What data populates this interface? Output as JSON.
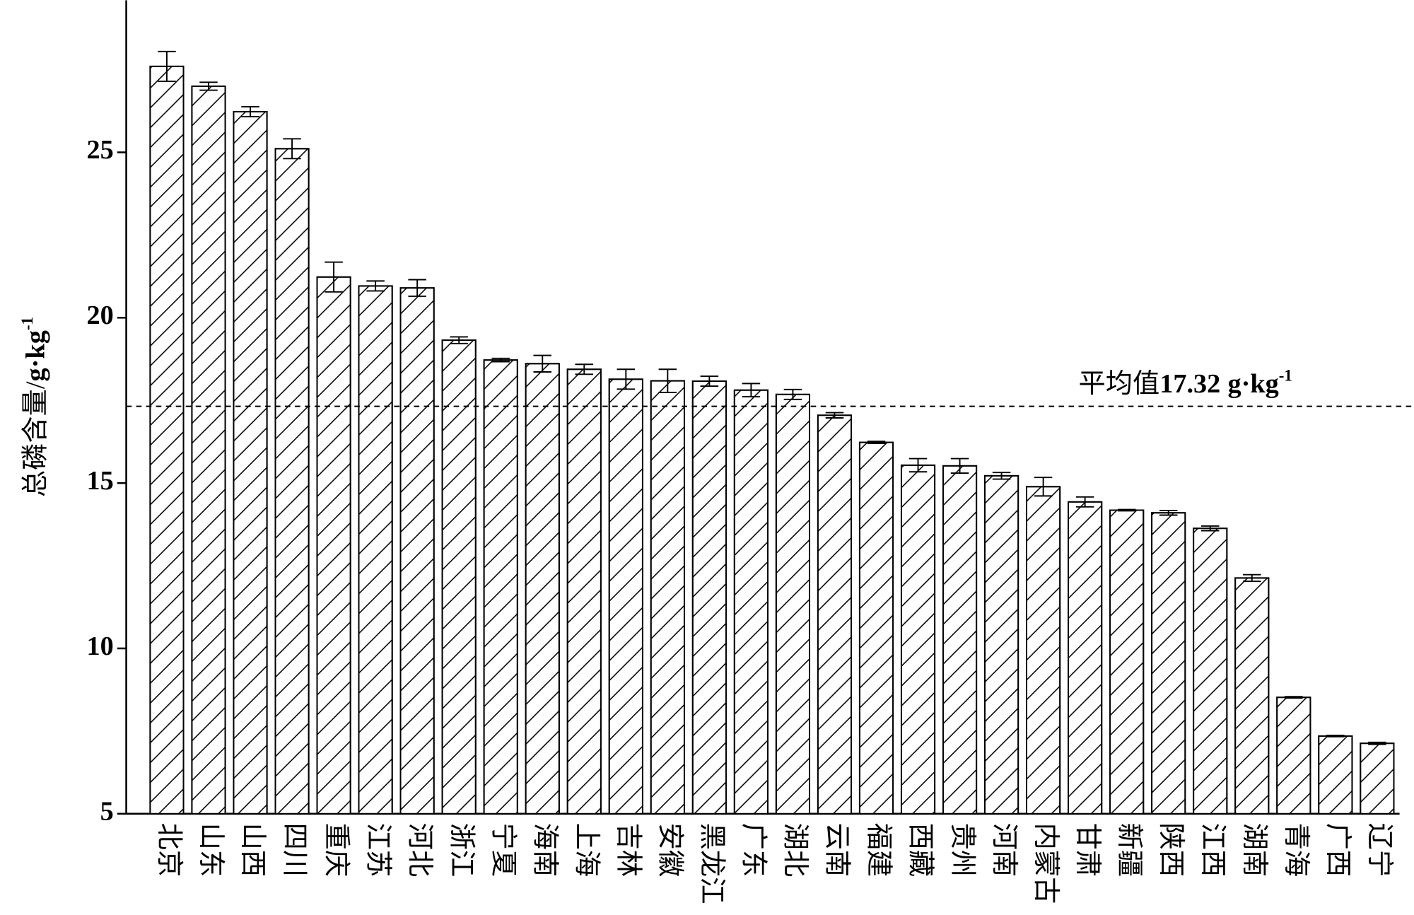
{
  "chart_data": {
    "type": "bar",
    "ylabel": {
      "text": "总磷含量/",
      "unit": "g·kg",
      "unit_exp": "-1"
    },
    "categories": [
      "北京",
      "山东",
      "山西",
      "四川",
      "重庆",
      "江苏",
      "河北",
      "浙江",
      "宁夏",
      "海南",
      "上海",
      "吉林",
      "安徽",
      "黑龙江",
      "广东",
      "湖北",
      "云南",
      "福建",
      "西藏",
      "贵州",
      "河南",
      "内蒙古",
      "甘肃",
      "新疆",
      "陕西",
      "江西",
      "湖南",
      "青海",
      "广西",
      "辽宁"
    ],
    "values": [
      27.6,
      27.0,
      26.23,
      25.11,
      21.23,
      20.96,
      20.9,
      19.32,
      18.72,
      18.61,
      18.44,
      18.14,
      18.09,
      18.08,
      17.81,
      17.68,
      17.05,
      16.23,
      15.54,
      15.52,
      15.22,
      14.89,
      14.43,
      14.18,
      14.1,
      13.63,
      12.13,
      8.52,
      7.35,
      7.13
    ],
    "errors": [
      0.45,
      0.12,
      0.15,
      0.3,
      0.45,
      0.15,
      0.25,
      0.1,
      0.05,
      0.25,
      0.15,
      0.3,
      0.35,
      0.15,
      0.2,
      0.15,
      0.08,
      0.03,
      0.2,
      0.22,
      0.1,
      0.28,
      0.15,
      0.02,
      0.07,
      0.07,
      0.1,
      0.02,
      0.02,
      0.03
    ],
    "color": "#ffffff",
    "hatch": true,
    "ylim": [
      5,
      29.6
    ],
    "yticks": [
      5,
      10,
      15,
      20,
      25
    ],
    "reference_line": {
      "value": 17.32,
      "prefix": "平均值",
      "unit": "g·kg",
      "unit_exp": "-1"
    }
  }
}
